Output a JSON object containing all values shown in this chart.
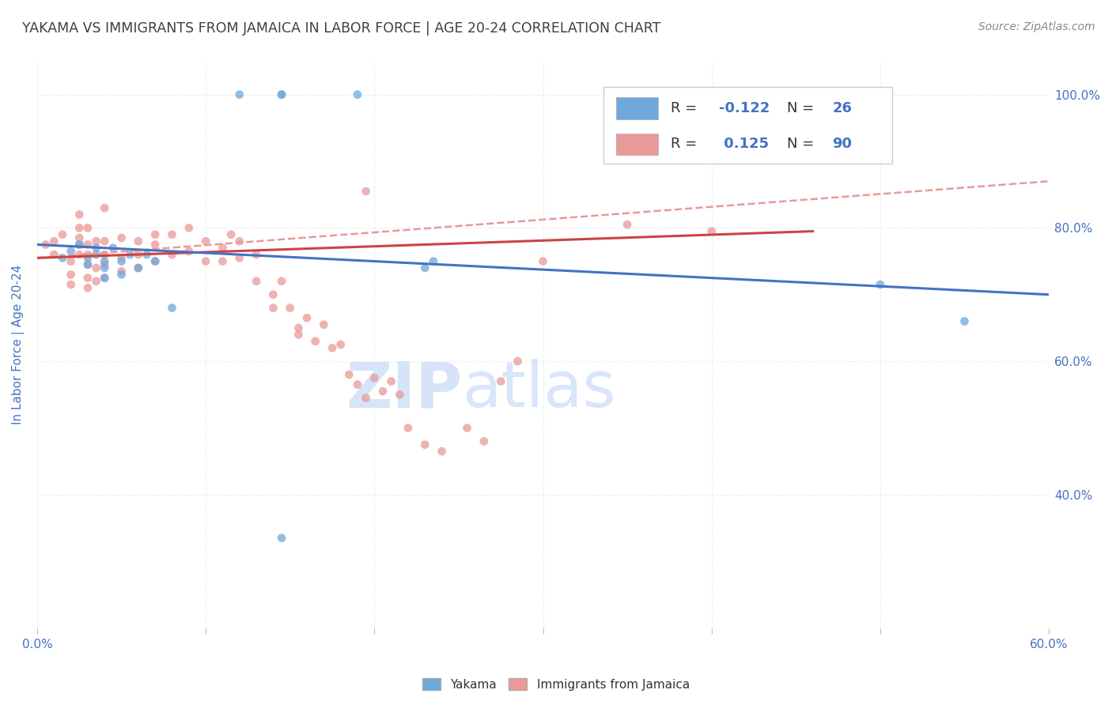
{
  "title": "YAKAMA VS IMMIGRANTS FROM JAMAICA IN LABOR FORCE | AGE 20-24 CORRELATION CHART",
  "source_text": "Source: ZipAtlas.com",
  "ylabel": "In Labor Force | Age 20-24",
  "xlim": [
    0.0,
    0.6
  ],
  "ylim": [
    0.2,
    1.05
  ],
  "ytick_labels": [
    "40.0%",
    "60.0%",
    "80.0%",
    "100.0%"
  ],
  "ytick_values": [
    0.4,
    0.6,
    0.8,
    1.0
  ],
  "xtick_values": [
    0.0,
    0.1,
    0.2,
    0.3,
    0.4,
    0.5,
    0.6
  ],
  "xtick_labels": [
    "0.0%",
    "",
    "",
    "",
    "",
    "",
    "60.0%"
  ],
  "blue_color": "#6fa8dc",
  "pink_color": "#ea9999",
  "blue_line_color": "#4472c4",
  "pink_line_color": "#cc4444",
  "title_color": "#404040",
  "axis_label_color": "#4472c4",
  "watermark_color": "#d6e4f7",
  "background_color": "#ffffff",
  "blue_scatter_x": [
    0.12,
    0.145,
    0.145,
    0.19,
    0.015,
    0.02,
    0.025,
    0.03,
    0.03,
    0.035,
    0.035,
    0.04,
    0.04,
    0.04,
    0.045,
    0.05,
    0.05,
    0.055,
    0.06,
    0.065,
    0.07,
    0.08,
    0.23,
    0.235,
    0.5,
    0.55
  ],
  "blue_scatter_y": [
    1.0,
    1.0,
    1.0,
    1.0,
    0.755,
    0.765,
    0.775,
    0.745,
    0.755,
    0.76,
    0.77,
    0.725,
    0.74,
    0.75,
    0.77,
    0.73,
    0.75,
    0.76,
    0.74,
    0.76,
    0.75,
    0.68,
    0.74,
    0.75,
    0.715,
    0.66
  ],
  "blue_outlier_x": [
    0.145
  ],
  "blue_outlier_y": [
    0.335
  ],
  "pink_scatter_x": [
    0.005,
    0.01,
    0.01,
    0.015,
    0.02,
    0.02,
    0.02,
    0.025,
    0.025,
    0.025,
    0.025,
    0.025,
    0.03,
    0.03,
    0.03,
    0.03,
    0.03,
    0.03,
    0.035,
    0.035,
    0.035,
    0.04,
    0.04,
    0.04,
    0.04,
    0.04,
    0.05,
    0.05,
    0.05,
    0.06,
    0.06,
    0.06,
    0.07,
    0.07,
    0.07,
    0.08,
    0.08,
    0.09,
    0.09,
    0.1,
    0.1,
    0.11,
    0.11,
    0.115,
    0.12,
    0.12,
    0.13,
    0.13,
    0.14,
    0.14,
    0.145,
    0.15,
    0.155,
    0.155,
    0.16,
    0.165,
    0.17,
    0.175,
    0.18,
    0.185,
    0.19,
    0.195,
    0.2,
    0.205,
    0.21,
    0.215,
    0.22,
    0.23,
    0.24,
    0.255,
    0.265,
    0.275,
    0.285,
    0.3,
    0.195,
    0.35,
    0.4
  ],
  "pink_scatter_y": [
    0.775,
    0.76,
    0.78,
    0.79,
    0.715,
    0.73,
    0.75,
    0.76,
    0.775,
    0.785,
    0.8,
    0.82,
    0.71,
    0.725,
    0.745,
    0.76,
    0.775,
    0.8,
    0.72,
    0.74,
    0.78,
    0.725,
    0.745,
    0.76,
    0.78,
    0.83,
    0.735,
    0.755,
    0.785,
    0.74,
    0.76,
    0.78,
    0.75,
    0.775,
    0.79,
    0.76,
    0.79,
    0.765,
    0.8,
    0.75,
    0.78,
    0.75,
    0.77,
    0.79,
    0.755,
    0.78,
    0.72,
    0.76,
    0.68,
    0.7,
    0.72,
    0.68,
    0.65,
    0.64,
    0.665,
    0.63,
    0.655,
    0.62,
    0.625,
    0.58,
    0.565,
    0.545,
    0.575,
    0.555,
    0.57,
    0.55,
    0.5,
    0.475,
    0.465,
    0.5,
    0.48,
    0.57,
    0.6,
    0.75,
    0.855,
    0.805,
    0.795
  ],
  "blue_trend_x": [
    0.0,
    0.6
  ],
  "blue_trend_y": [
    0.775,
    0.7
  ],
  "pink_solid_trend_x": [
    0.0,
    0.46
  ],
  "pink_solid_trend_y": [
    0.755,
    0.795
  ],
  "pink_dash_trend_x": [
    0.0,
    0.6
  ],
  "pink_dash_trend_y": [
    0.755,
    0.87
  ],
  "marker_size": 60,
  "alpha": 0.75,
  "grid_color": "#e0e0e0",
  "figure_bg": "#ffffff"
}
